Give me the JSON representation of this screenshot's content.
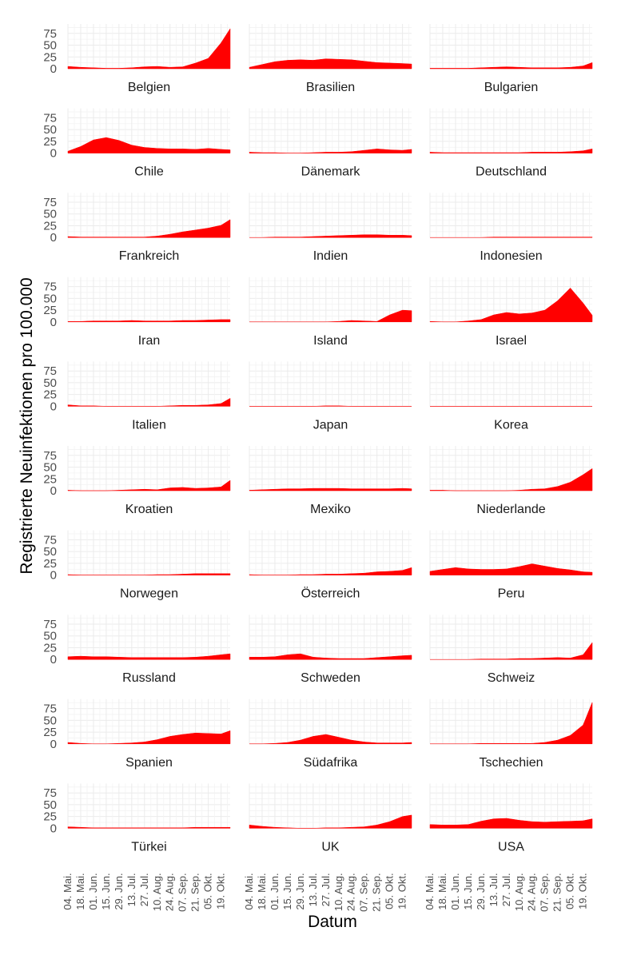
{
  "chart_data": {
    "type": "area",
    "title": "",
    "xlabel": "Datum",
    "ylabel": "Registrierte Neuinfektionen pro 100.000",
    "ylim": [
      0,
      95
    ],
    "yticks": [
      0,
      25,
      50,
      75
    ],
    "ytick_labels": [
      "0",
      "25",
      "50",
      "75"
    ],
    "xlim_days": [
      0,
      178
    ],
    "xtick_days": [
      0,
      14,
      28,
      42,
      56,
      70,
      84,
      98,
      112,
      126,
      140,
      154,
      168
    ],
    "xtick_labels": [
      "04. Mai.",
      "18. Mai.",
      "01. Jun.",
      "15. Jun.",
      "29. Jun.",
      "13. Jul.",
      "27. Jul.",
      "10. Aug.",
      "24. Aug.",
      "07. Sep.",
      "21. Sep.",
      "05. Okt.",
      "19. Okt."
    ],
    "x_days": [
      0,
      14,
      28,
      42,
      56,
      70,
      84,
      98,
      112,
      126,
      140,
      154,
      168,
      178
    ],
    "fill_color": "#ff0000",
    "grid": true,
    "series": [
      {
        "name": "Belgien",
        "values": [
          5,
          3,
          2,
          1,
          1,
          2,
          4,
          5,
          3,
          4,
          12,
          22,
          55,
          85
        ]
      },
      {
        "name": "Brasilien",
        "values": [
          3,
          9,
          15,
          18,
          19,
          18,
          21,
          20,
          19,
          16,
          13,
          12,
          11,
          10
        ]
      },
      {
        "name": "Bulgarien",
        "values": [
          1,
          1,
          1,
          1,
          2,
          3,
          4,
          3,
          2,
          2,
          2,
          3,
          6,
          13
        ]
      },
      {
        "name": "Chile",
        "values": [
          4,
          14,
          28,
          33,
          27,
          17,
          12,
          10,
          9,
          9,
          8,
          10,
          8,
          7
        ]
      },
      {
        "name": "Dänemark",
        "values": [
          2,
          1,
          1,
          0,
          0,
          1,
          2,
          2,
          3,
          6,
          9,
          7,
          6,
          8
        ]
      },
      {
        "name": "Deutschland",
        "values": [
          2,
          1,
          1,
          1,
          1,
          1,
          1,
          1,
          2,
          2,
          2,
          3,
          5,
          9
        ]
      },
      {
        "name": "Frankreich",
        "values": [
          2,
          1,
          1,
          1,
          1,
          1,
          1,
          3,
          7,
          12,
          16,
          20,
          26,
          38
        ]
      },
      {
        "name": "Indien",
        "values": [
          0,
          0,
          1,
          1,
          1,
          2,
          3,
          4,
          5,
          6,
          6,
          5,
          5,
          4
        ]
      },
      {
        "name": "Indonesien",
        "values": [
          0,
          0,
          0,
          0,
          0,
          1,
          1,
          1,
          1,
          1,
          1,
          1,
          1,
          1
        ]
      },
      {
        "name": "Iran",
        "values": [
          1,
          1,
          2,
          2,
          2,
          3,
          2,
          2,
          2,
          3,
          3,
          4,
          5,
          5
        ]
      },
      {
        "name": "Island",
        "values": [
          0,
          0,
          0,
          0,
          0,
          0,
          0,
          1,
          3,
          2,
          1,
          15,
          25,
          24
        ]
      },
      {
        "name": "Israel",
        "values": [
          1,
          0,
          0,
          2,
          5,
          15,
          20,
          17,
          19,
          25,
          45,
          72,
          40,
          14
        ]
      },
      {
        "name": "Italien",
        "values": [
          3,
          1,
          1,
          0,
          0,
          0,
          0,
          0,
          1,
          2,
          2,
          3,
          6,
          17
        ]
      },
      {
        "name": "Japan",
        "values": [
          0,
          0,
          0,
          0,
          0,
          0,
          1,
          1,
          0,
          0,
          0,
          0,
          0,
          0
        ]
      },
      {
        "name": "Korea",
        "values": [
          0,
          0,
          0,
          0,
          0,
          0,
          0,
          0,
          0,
          0,
          0,
          0,
          0,
          0
        ]
      },
      {
        "name": "Kroatien",
        "values": [
          1,
          0,
          0,
          0,
          1,
          2,
          3,
          2,
          6,
          7,
          5,
          6,
          8,
          22
        ]
      },
      {
        "name": "Mexiko",
        "values": [
          1,
          2,
          3,
          4,
          4,
          5,
          5,
          5,
          4,
          4,
          4,
          4,
          5,
          4
        ]
      },
      {
        "name": "Niederlande",
        "values": [
          1,
          1,
          0,
          0,
          0,
          0,
          0,
          1,
          3,
          4,
          9,
          18,
          34,
          47
        ]
      },
      {
        "name": "Norwegen",
        "values": [
          1,
          0,
          0,
          0,
          0,
          0,
          0,
          1,
          1,
          2,
          3,
          3,
          3,
          3
        ]
      },
      {
        "name": "Österreich",
        "values": [
          1,
          0,
          0,
          0,
          1,
          1,
          2,
          2,
          3,
          4,
          7,
          8,
          10,
          16
        ]
      },
      {
        "name": "Peru",
        "values": [
          8,
          12,
          16,
          13,
          12,
          12,
          13,
          18,
          24,
          19,
          14,
          11,
          7,
          6
        ]
      },
      {
        "name": "Russland",
        "values": [
          6,
          7,
          6,
          6,
          5,
          4,
          4,
          4,
          4,
          4,
          5,
          7,
          10,
          12
        ]
      },
      {
        "name": "Schweden",
        "values": [
          5,
          5,
          6,
          10,
          12,
          5,
          3,
          2,
          2,
          2,
          4,
          6,
          8,
          9
        ]
      },
      {
        "name": "Schweiz",
        "values": [
          0,
          0,
          0,
          0,
          1,
          1,
          1,
          2,
          2,
          3,
          4,
          3,
          10,
          36
        ]
      },
      {
        "name": "Spanien",
        "values": [
          3,
          1,
          0,
          0,
          1,
          2,
          4,
          9,
          16,
          20,
          23,
          22,
          21,
          28
        ]
      },
      {
        "name": "Südafrika",
        "values": [
          0,
          0,
          1,
          3,
          8,
          16,
          20,
          14,
          8,
          4,
          2,
          2,
          2,
          3
        ]
      },
      {
        "name": "Tschechien",
        "values": [
          0,
          0,
          0,
          0,
          1,
          1,
          1,
          1,
          1,
          3,
          8,
          18,
          40,
          88
        ]
      },
      {
        "name": "Türkei",
        "values": [
          3,
          2,
          1,
          1,
          1,
          1,
          1,
          1,
          1,
          1,
          2,
          2,
          2,
          2
        ]
      },
      {
        "name": "UK",
        "values": [
          7,
          4,
          2,
          1,
          0,
          0,
          1,
          1,
          2,
          3,
          7,
          14,
          25,
          28
        ]
      },
      {
        "name": "USA",
        "values": [
          8,
          7,
          7,
          8,
          15,
          20,
          21,
          17,
          14,
          13,
          14,
          15,
          16,
          20
        ]
      }
    ]
  }
}
